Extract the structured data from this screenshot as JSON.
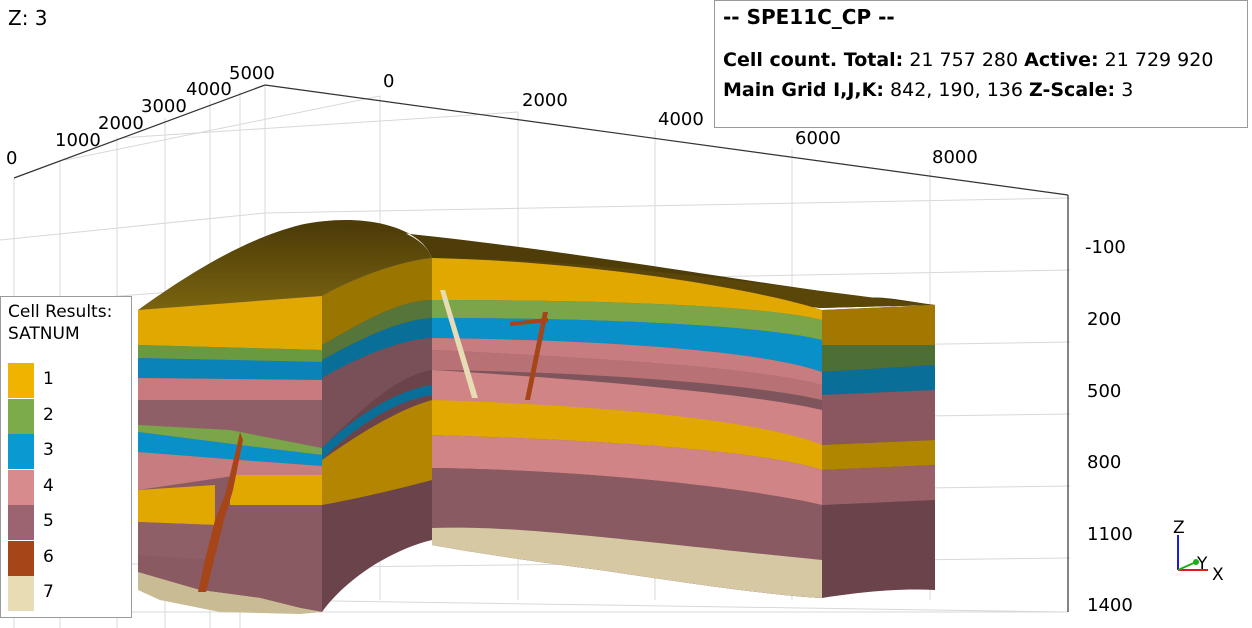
{
  "z_scale_label": "Z: 3",
  "info": {
    "title": "-- SPE11C_CP --",
    "cell_count_label": "Cell count. Total:",
    "total": "21 757 280",
    "active_label": "Active:",
    "active": "21 729 920",
    "main_grid_label": "Main Grid I,J,K:",
    "ijk": "842, 190, 136",
    "z_scale_key": "Z-Scale:",
    "z_scale_value": "3"
  },
  "axes": {
    "y_ticks": [
      "0",
      "1000",
      "2000",
      "3000",
      "4000",
      "5000"
    ],
    "x_ticks": [
      "0",
      "2000",
      "4000",
      "6000",
      "8000"
    ],
    "z_ticks": [
      "-100",
      "200",
      "500",
      "800",
      "1100",
      "1400"
    ]
  },
  "legend": {
    "title_line1": "Cell Results:",
    "title_line2": "SATNUM",
    "items": [
      {
        "label": "1",
        "color": "#f0b400"
      },
      {
        "label": "2",
        "color": "#7cac4a"
      },
      {
        "label": "3",
        "color": "#0a9ad2"
      },
      {
        "label": "4",
        "color": "#d88b8c"
      },
      {
        "label": "5",
        "color": "#9b6470"
      },
      {
        "label": "6",
        "color": "#a54518"
      },
      {
        "label": "7",
        "color": "#e8dcb5"
      }
    ]
  },
  "axis_triad": {
    "z": "Z",
    "y": "Y",
    "x": "X"
  }
}
